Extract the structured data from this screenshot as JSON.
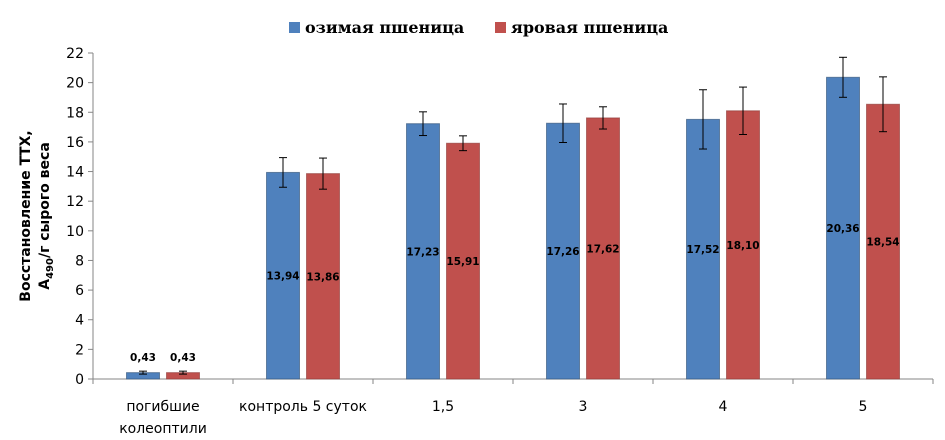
{
  "chart_data": {
    "type": "bar",
    "categories": [
      [
        "погибшие",
        "колеоптили"
      ],
      [
        "контроль 5 суток"
      ],
      [
        "1,5"
      ],
      [
        "3"
      ],
      [
        "4"
      ],
      [
        "5"
      ]
    ],
    "series": [
      {
        "name": "озимая пшеница",
        "color": "#4F81BD",
        "values": [
          0.43,
          13.94,
          17.23,
          17.26,
          17.52,
          20.36
        ],
        "errors": [
          0.1,
          1.0,
          0.8,
          1.3,
          2.0,
          1.35
        ],
        "labels": [
          "0,43",
          "13,94",
          "17,23",
          "17,26",
          "17,52",
          "20,36"
        ]
      },
      {
        "name": "яровая пшеница",
        "color": "#C0504D",
        "values": [
          0.43,
          13.86,
          15.91,
          17.62,
          18.1,
          18.54
        ],
        "errors": [
          0.1,
          1.05,
          0.5,
          0.75,
          1.6,
          1.85
        ],
        "labels": [
          "0,43",
          "13,86",
          "15,91",
          "17,62",
          "18,10",
          "18,54"
        ]
      }
    ],
    "ylabel_line1": "Восстановление ТТХ,",
    "ylabel_line2_prefix": "A",
    "ylabel_line2_sub": "490",
    "ylabel_line2_suffix": "/г сырого веса",
    "ylim": [
      0,
      22
    ],
    "yticks": [
      0,
      2,
      4,
      6,
      8,
      10,
      12,
      14,
      16,
      18,
      20,
      22
    ],
    "grid": false,
    "legend": "top-center"
  }
}
